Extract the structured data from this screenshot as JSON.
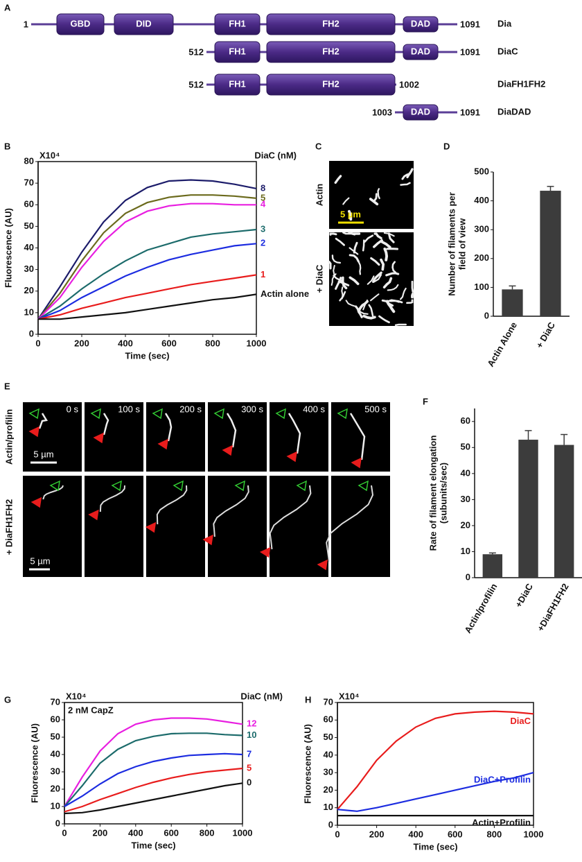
{
  "panel_labels": [
    "A",
    "B",
    "C",
    "D",
    "E",
    "F",
    "G",
    "H"
  ],
  "panel_a": {
    "constructs": [
      {
        "name": "Dia",
        "start": "1",
        "end": "1091",
        "domains": [
          "GBD",
          "DID",
          "FH1",
          "FH2",
          "DAD"
        ]
      },
      {
        "name": "DiaC",
        "start": "512",
        "end": "1091",
        "domains": [
          "FH1",
          "FH2",
          "DAD"
        ]
      },
      {
        "name": "DiaFH1FH2",
        "start": "512",
        "end": "1002",
        "domains": [
          "FH1",
          "FH2"
        ]
      },
      {
        "name": "DiaDAD",
        "start": "1003",
        "end": "1091",
        "domains": [
          "DAD"
        ]
      }
    ]
  },
  "panel_c": {
    "labels": [
      "Actin",
      "+ DiaC"
    ],
    "scale_bar": "5 µm"
  },
  "panel_e": {
    "row_labels": [
      "Actin/profilin",
      "+ DiaFH1FH2"
    ],
    "times": [
      "0 s",
      "100 s",
      "200 s",
      "300 s",
      "400 s",
      "500 s"
    ],
    "scale_bars": [
      "5 µm",
      "5 µm"
    ]
  },
  "chart_data": [
    {
      "type": "line",
      "multiplier": "X10⁴",
      "legend_title": "DiaC (nM)",
      "xlabel": "Time (sec)",
      "ylabel": "Fluorescence (AU)",
      "x": [
        0,
        100,
        200,
        300,
        400,
        500,
        600,
        700,
        800,
        900,
        1000
      ],
      "xlim": [
        0,
        1000
      ],
      "xticks": [
        0,
        200,
        400,
        600,
        800,
        1000
      ],
      "ylim": [
        0,
        80
      ],
      "yticks": [
        0,
        10,
        20,
        30,
        40,
        50,
        60,
        70,
        80
      ],
      "series": [
        {
          "name": "8",
          "color": "#1c1c6a",
          "values": [
            7,
            22,
            38,
            52,
            62,
            68,
            71,
            71.5,
            71,
            69.5,
            67.5
          ]
        },
        {
          "name": "5",
          "color": "#6b6a1c",
          "values": [
            7,
            19,
            34,
            47,
            56,
            61,
            63.5,
            64.5,
            64.5,
            64,
            63
          ]
        },
        {
          "name": "4",
          "color": "#e81ee0",
          "values": [
            7,
            17,
            31,
            43,
            52,
            57,
            59.5,
            60.5,
            60.5,
            60,
            60
          ]
        },
        {
          "name": "3",
          "color": "#1c6b6b",
          "values": [
            7,
            13,
            21,
            28,
            34,
            39,
            42,
            45,
            46.5,
            47.5,
            48.5
          ]
        },
        {
          "name": "2",
          "color": "#1c2ce0",
          "values": [
            7,
            11,
            17,
            22,
            27,
            31,
            34.5,
            37,
            39,
            41,
            42
          ]
        },
        {
          "name": "1",
          "color": "#e81c1c",
          "values": [
            7,
            9,
            12,
            14.5,
            17,
            19,
            21,
            23,
            24.5,
            26,
            27.5
          ]
        },
        {
          "name": "Actin alone",
          "color": "#111111",
          "values": [
            7,
            7,
            8,
            9,
            10,
            11.5,
            13,
            14.5,
            16,
            17,
            18.5
          ]
        }
      ]
    },
    {
      "type": "bar",
      "ylabel": [
        "Number of filaments per",
        "field of view"
      ],
      "categories": [
        "Actin Alone",
        "+ DiaC"
      ],
      "values": [
        93,
        435
      ],
      "errors": [
        12,
        15
      ],
      "color": "#3c3c3c",
      "ylim": [
        0,
        500
      ],
      "yticks": [
        0,
        100,
        200,
        300,
        400,
        500
      ]
    },
    {
      "type": "bar",
      "ylabel": [
        "Rate of filament elongation",
        "(subunits/sec)"
      ],
      "categories": [
        "Actin/profilin",
        "+DiaC",
        "+DiaFH1FH2"
      ],
      "values": [
        9,
        53,
        51
      ],
      "errors": [
        0.5,
        3.5,
        4
      ],
      "color": "#3c3c3c",
      "ylim": [
        0,
        65
      ],
      "yticks": [
        0,
        10,
        20,
        30,
        40,
        50,
        60
      ]
    },
    {
      "type": "line",
      "multiplier": "X10⁴",
      "legend_title": "DiaC (nM)",
      "note": "2 nM CapZ",
      "xlabel": "Time (sec)",
      "ylabel": "Fluorescence (AU)",
      "x": [
        0,
        100,
        200,
        300,
        400,
        500,
        600,
        700,
        800,
        900,
        1000
      ],
      "xlim": [
        0,
        1000
      ],
      "xticks": [
        0,
        200,
        400,
        600,
        800,
        1000
      ],
      "ylim": [
        0,
        70
      ],
      "yticks": [
        0,
        10,
        20,
        30,
        40,
        50,
        60,
        70
      ],
      "series": [
        {
          "name": "12",
          "color": "#e81ee0",
          "values": [
            10,
            27,
            42,
            52,
            57.5,
            60,
            61,
            61,
            60.5,
            59,
            57.5
          ]
        },
        {
          "name": "10",
          "color": "#1c6b6b",
          "values": [
            10,
            22,
            35,
            43,
            48,
            50.5,
            52,
            52.3,
            52.3,
            51.5,
            51
          ]
        },
        {
          "name": "7",
          "color": "#1c2ce0",
          "values": [
            10,
            16,
            23,
            29,
            33,
            36,
            38,
            39.5,
            40,
            40.5,
            40
          ]
        },
        {
          "name": "5",
          "color": "#e81c1c",
          "values": [
            7,
            10,
            14,
            17.5,
            21,
            24,
            26.5,
            28.5,
            30,
            31,
            32
          ]
        },
        {
          "name": "0",
          "color": "#111111",
          "values": [
            6,
            6.5,
            8,
            10,
            12,
            14,
            16,
            18,
            20,
            22,
            23.5
          ]
        }
      ]
    },
    {
      "type": "line",
      "multiplier": "X10⁴",
      "xlabel": "Time (sec)",
      "ylabel": "Fluorescence (AU)",
      "x": [
        0,
        100,
        200,
        300,
        400,
        500,
        600,
        700,
        800,
        900,
        1000
      ],
      "xlim": [
        0,
        1000
      ],
      "xticks": [
        0,
        200,
        400,
        600,
        800,
        1000
      ],
      "ylim": [
        0,
        70
      ],
      "yticks": [
        0,
        10,
        20,
        30,
        40,
        50,
        60,
        70
      ],
      "series": [
        {
          "name": "DiaC",
          "color": "#e81c1c",
          "values": [
            9,
            22,
            37,
            48,
            56,
            61,
            63.5,
            64.5,
            65,
            64.5,
            63.5
          ]
        },
        {
          "name": "DiaC+Profilin",
          "color": "#1c2ce0",
          "values": [
            9,
            8,
            10,
            12.5,
            15,
            17.5,
            20,
            22.5,
            25,
            27,
            30
          ]
        },
        {
          "name": "Actin+Profilin",
          "color": "#111111",
          "values": [
            5.5,
            5.5,
            5.5,
            5.5,
            5.5,
            5.5,
            5.5,
            5.5,
            5.5,
            5.5,
            5.5
          ]
        }
      ]
    }
  ]
}
